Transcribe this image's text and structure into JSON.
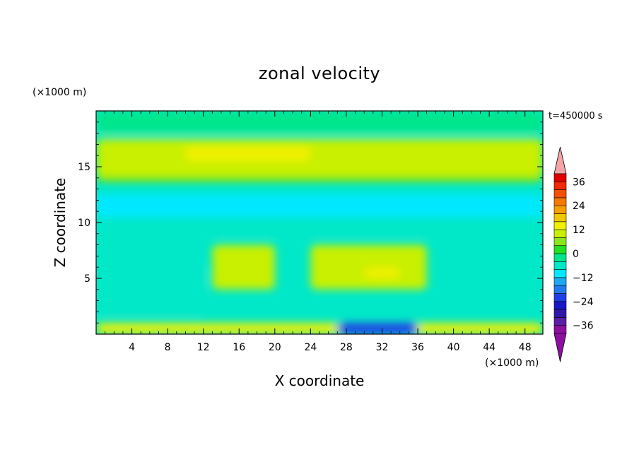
{
  "chart_data": {
    "type": "heatmap",
    "title": "zonal velocity",
    "time_label": "t=450000 s",
    "xlabel": "X coordinate",
    "ylabel": "Z coordinate",
    "x_unit": "(×1000 m)",
    "y_unit": "(×1000 m)",
    "xlim": [
      0,
      50
    ],
    "ylim": [
      0,
      20
    ],
    "x_ticks": [
      4,
      8,
      12,
      16,
      20,
      24,
      28,
      32,
      36,
      40,
      44,
      48
    ],
    "y_ticks": [
      5,
      10,
      15
    ],
    "colorbar": {
      "levels": [
        -40,
        -36,
        -32,
        -28,
        -24,
        -20,
        -16,
        -12,
        -8,
        -4,
        0,
        4,
        8,
        12,
        16,
        20,
        24,
        28,
        32,
        36,
        40
      ],
      "tick_values": [
        -36,
        -24,
        -12,
        0,
        12,
        24,
        36
      ],
      "colors": [
        "#8c0fa0",
        "#5a1fa3",
        "#2f1aa8",
        "#1717c8",
        "#1f3fe6",
        "#1f7bec",
        "#1fa8f0",
        "#00e8ff",
        "#00e8c8",
        "#00e68c",
        "#22e022",
        "#8ce61e",
        "#c8f000",
        "#f0f000",
        "#f0c800",
        "#f5a000",
        "#f57800",
        "#f05000",
        "#f02a00",
        "#e00000"
      ],
      "over_color": "#f4a6a6",
      "under_color": "#8c0fa0"
    },
    "field_summary": [
      {
        "z_range": [
          0,
          1
        ],
        "x_range": [
          0,
          50
        ],
        "value": 12
      },
      {
        "z_range": [
          0,
          1
        ],
        "x_range": [
          27,
          36
        ],
        "value": -24
      },
      {
        "z_range": [
          2,
          6
        ],
        "x_range": [
          0,
          12
        ],
        "value": -8
      },
      {
        "z_range": [
          4,
          8
        ],
        "x_range": [
          13,
          20
        ],
        "value": 8
      },
      {
        "z_range": [
          4,
          8
        ],
        "x_range": [
          24,
          37
        ],
        "value": 8
      },
      {
        "z_range": [
          5,
          6
        ],
        "x_range": [
          30,
          34
        ],
        "value": 12
      },
      {
        "z_range": [
          9,
          13
        ],
        "x_range": [
          0,
          50
        ],
        "value": -8
      },
      {
        "z_range": [
          10.5,
          12.5
        ],
        "x_range": [
          0,
          50
        ],
        "value": -12
      },
      {
        "z_range": [
          13.5,
          14
        ],
        "x_range": [
          0,
          50
        ],
        "value": 0
      },
      {
        "z_range": [
          14,
          17.5
        ],
        "x_range": [
          0,
          50
        ],
        "value": 8
      },
      {
        "z_range": [
          15.5,
          16.8
        ],
        "x_range": [
          10,
          24
        ],
        "value": 12
      },
      {
        "z_range": [
          18,
          20
        ],
        "x_range": [
          0,
          50
        ],
        "value": -4
      }
    ]
  }
}
